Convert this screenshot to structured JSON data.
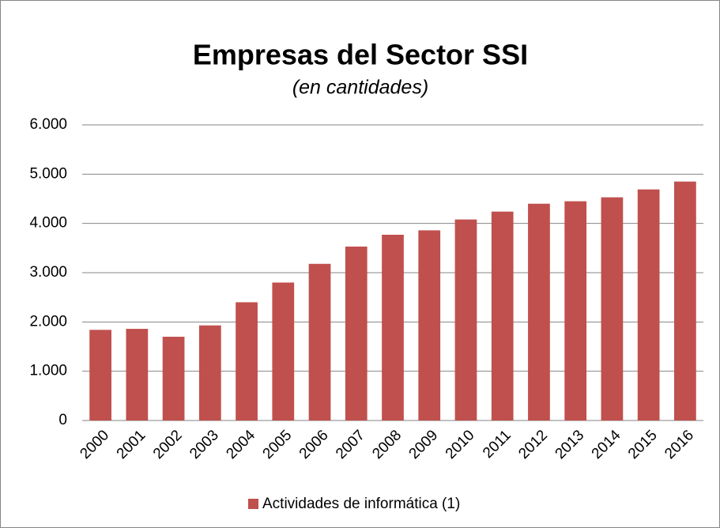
{
  "chart_data": {
    "type": "bar",
    "title": "Empresas del Sector SSI",
    "subtitle": "(en cantidades)",
    "categories": [
      "2000",
      "2001",
      "2002",
      "2003",
      "2004",
      "2005",
      "2006",
      "2007",
      "2008",
      "2009",
      "2010",
      "2011",
      "2012",
      "2013",
      "2014",
      "2015",
      "2016"
    ],
    "series": [
      {
        "name": "Actividades de informática (1)",
        "color": "#c0504d",
        "values": [
          1840,
          1860,
          1700,
          1930,
          2400,
          2800,
          3180,
          3530,
          3770,
          3860,
          4080,
          4240,
          4400,
          4450,
          4530,
          4690,
          4850
        ]
      }
    ],
    "ylim": [
      0,
      6000
    ],
    "yticks": [
      0,
      {
        "value": 1000,
        "label": "1.000"
      },
      {
        "value": 2000,
        "label": "2.000"
      },
      {
        "value": 3000,
        "label": "3.000"
      },
      {
        "value": 4000,
        "label": "4.000"
      },
      {
        "value": 5000,
        "label": "5.000"
      },
      {
        "value": 6000,
        "label": "6.000"
      }
    ],
    "grid": true,
    "legend": "bottom"
  }
}
